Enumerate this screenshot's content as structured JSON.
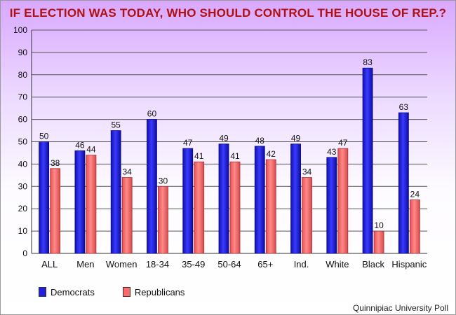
{
  "title": "IF ELECTION WAS TODAY, WHO SHOULD CONTROL THE HOUSE OF REP.?",
  "source": "Quinnipiac University Poll",
  "colors": {
    "democrats": "#2020e0",
    "republicans": "#ff6b6b",
    "grid": "#555555"
  },
  "chart_data": {
    "type": "bar",
    "title": "IF ELECTION WAS TODAY, WHO SHOULD CONTROL THE HOUSE OF REP.?",
    "categories": [
      "ALL",
      "Men",
      "Women",
      "18-34",
      "35-49",
      "50-64",
      "65+",
      "Ind.",
      "White",
      "Black",
      "Hispanic"
    ],
    "series": [
      {
        "name": "Democrats",
        "values": [
          50,
          46,
          55,
          60,
          47,
          49,
          48,
          49,
          43,
          83,
          63
        ]
      },
      {
        "name": "Republicans",
        "values": [
          38,
          44,
          34,
          30,
          41,
          41,
          42,
          34,
          47,
          10,
          24
        ]
      }
    ],
    "ylim": [
      0,
      100
    ],
    "yticks": [
      0,
      10,
      20,
      30,
      40,
      50,
      60,
      70,
      80,
      90,
      100
    ],
    "grid": true,
    "legend": "bottom-left"
  }
}
